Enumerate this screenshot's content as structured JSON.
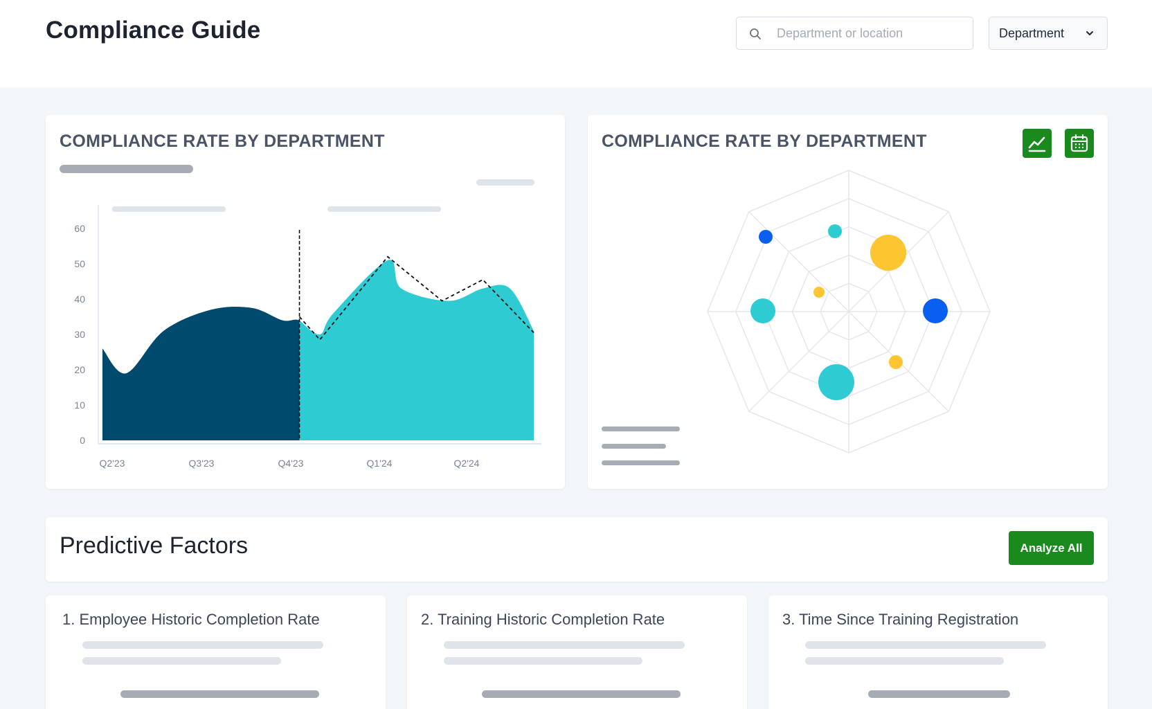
{
  "header": {
    "title": "Compliance Guide",
    "search_placeholder": "Department or location",
    "department_select": "Department"
  },
  "area_chart_card": {
    "title": "COMPLIANCE RATE BY DEPARTMENT"
  },
  "radar_card": {
    "title": "COMPLIANCE RATE BY DEPARTMENT",
    "buttons": [
      "line-chart-icon",
      "calendar-icon"
    ]
  },
  "predictive": {
    "title": "Predictive Factors",
    "analyze_label": "Analyze All"
  },
  "factors": [
    {
      "label": "1. Employee Historic Completion Rate"
    },
    {
      "label": "2. Training Historic Completion Rate"
    },
    {
      "label": "3. Time Since Training Registration"
    }
  ],
  "colors": {
    "accent_green": "#1a8a1f",
    "historic_area": "#004a6d",
    "forecast_area": "#2ecbd3",
    "radar_yellow": "#fdc52f",
    "radar_blue": "#0a5ff0",
    "radar_cyan": "#2ecbd3"
  },
  "chart_data": [
    {
      "type": "area",
      "y_ticks": [
        0,
        10,
        20,
        30,
        40,
        50,
        60
      ],
      "x_ticks": [
        "Q2'23",
        "Q3'23",
        "Q4'23",
        "Q1'24",
        "Q2'24"
      ],
      "ylim": [
        0,
        60
      ],
      "grid": false,
      "series": [
        {
          "x": [
            0,
            0.35,
            0.9,
            1.6,
            2.2,
            2.65,
            2.9,
            3.2,
            3.4
          ],
          "values": [
            26,
            19,
            31,
            37,
            37.5,
            34,
            34,
            30,
            36
          ]
        },
        {
          "x": [
            2.9,
            3.2,
            3.4,
            4.2,
            4.4,
            5.1,
            5.6,
            6.0,
            6.35
          ],
          "values": [
            34,
            30,
            36,
            51,
            43,
            39.5,
            43,
            43,
            31
          ]
        },
        {
          "style": "dashed",
          "x": [
            2.9,
            3.2,
            4.2,
            5.0,
            5.6,
            6.35
          ],
          "values": [
            35,
            28.5,
            52,
            39.5,
            45.5,
            30.5
          ]
        }
      ],
      "vertical_marker_x": 2.9
    },
    {
      "type": "radar",
      "axes_count": 8,
      "rings": 5,
      "points": [
        {
          "color": "blue",
          "size": "small",
          "value": 0.8
        },
        {
          "color": "cyan",
          "size": "small",
          "value": 0.58
        },
        {
          "color": "yellow",
          "size": "large",
          "value": 0.6
        },
        {
          "color": "yellow",
          "size": "xsmall",
          "value": 0.23
        },
        {
          "color": "cyan",
          "size": "medium",
          "value": 0.6
        },
        {
          "color": "blue",
          "size": "medium",
          "value": 0.6
        },
        {
          "color": "yellow",
          "size": "small",
          "value": 0.45
        },
        {
          "color": "cyan",
          "size": "large",
          "value": 0.48
        }
      ]
    }
  ]
}
